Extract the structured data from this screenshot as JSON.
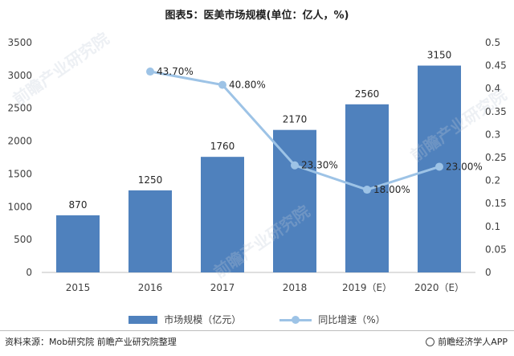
{
  "title": "图表5：医美市场规模(单位：亿人，%)",
  "legend": {
    "bar": "市场规模（亿元）",
    "line": "同比增速（%）"
  },
  "footer": {
    "source": "资料来源：Mob研究院 前瞻产业研究院整理",
    "brand": "前瞻经济学人APP"
  },
  "watermark": "前瞻产业研究院",
  "colors": {
    "bar": "#4f81bd",
    "line": "#9dc3e6",
    "axis": "#bfbfbf"
  },
  "chart_data": {
    "type": "bar",
    "categories": [
      "2015",
      "2016",
      "2017",
      "2018",
      "2019（E）",
      "2020（E）"
    ],
    "series": [
      {
        "name": "市场规模（亿元）",
        "type": "bar",
        "axis": "left",
        "values": [
          870,
          1250,
          1760,
          2170,
          2560,
          3150
        ],
        "labels": [
          "870",
          "1250",
          "1760",
          "2170",
          "2560",
          "3150"
        ]
      },
      {
        "name": "同比增速（%）",
        "type": "line",
        "axis": "right",
        "values": [
          null,
          0.437,
          0.408,
          0.233,
          0.18,
          0.23
        ],
        "labels": [
          "",
          "43.70%",
          "40.80%",
          "23.30%",
          "18.00%",
          "23.00%"
        ]
      }
    ],
    "y_left": {
      "min": 0,
      "max": 3500,
      "ticks": [
        "0",
        "500",
        "1000",
        "1500",
        "2000",
        "2500",
        "3000",
        "3500"
      ]
    },
    "y_right": {
      "min": 0,
      "max": 0.5,
      "ticks": [
        "0",
        "0.05",
        "0.1",
        "0.15",
        "0.2",
        "0.25",
        "0.3",
        "0.35",
        "0.4",
        "0.45",
        "0.5"
      ]
    },
    "grid": false,
    "legend_position": "bottom"
  }
}
